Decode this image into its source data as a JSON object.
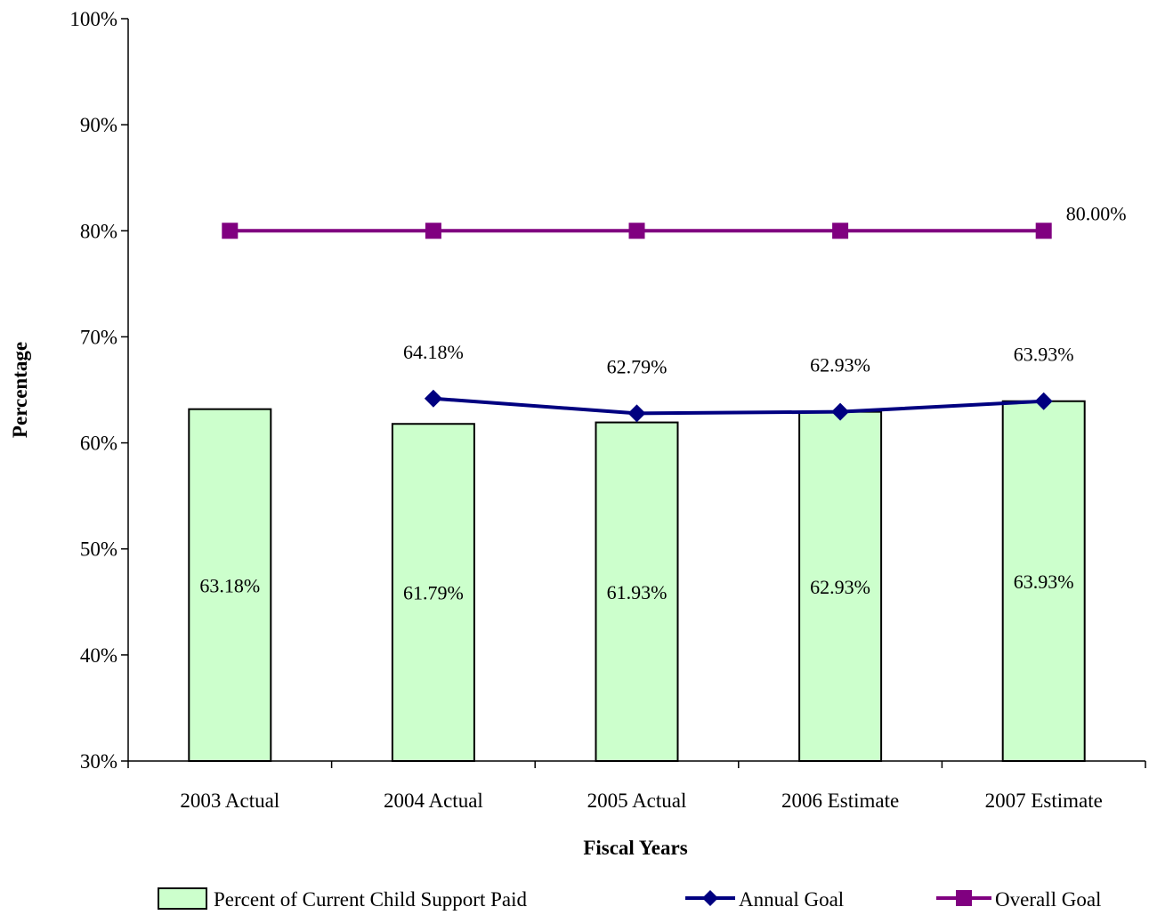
{
  "chart_data": {
    "type": "bar",
    "categories": [
      "2003 Actual",
      "2004 Actual",
      "2005 Actual",
      "2006 Estimate",
      "2007 Estimate"
    ],
    "bar_series": {
      "name": "Percent of Current Child Support Paid",
      "values": [
        63.18,
        61.79,
        61.93,
        62.93,
        63.93
      ],
      "labels": [
        "63.18%",
        "61.79%",
        "61.93%",
        "62.93%",
        "63.93%"
      ],
      "color": "#ccffcc"
    },
    "annual_goal": {
      "name": "Annual Goal",
      "values": [
        null,
        64.18,
        62.79,
        62.93,
        63.93
      ],
      "labels": [
        "",
        "64.18%",
        "62.79%",
        "62.93%",
        "63.93%"
      ],
      "color": "#000080",
      "marker": "diamond"
    },
    "overall_goal": {
      "name": "Overall Goal",
      "values": [
        80,
        80,
        80,
        80,
        80
      ],
      "label": "80.00%",
      "color": "#800080",
      "marker": "square"
    },
    "xlabel": "Fiscal Years",
    "ylabel": "Percentage",
    "ylim": [
      30,
      100
    ],
    "yticks": [
      "30%",
      "40%",
      "50%",
      "60%",
      "70%",
      "80%",
      "90%",
      "100%"
    ],
    "grid": false,
    "legend_position": "bottom"
  }
}
